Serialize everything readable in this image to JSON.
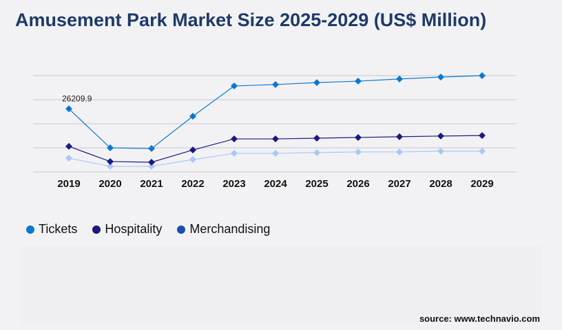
{
  "title": "Amusement Park Market Size 2025-2029 (US$ Million)",
  "source": "source: www.technavio.com",
  "chart_data": {
    "type": "line",
    "title": "Amusement Park Market Size 2025-2029 (US$ Million)",
    "x": [
      "2019",
      "2020",
      "2021",
      "2022",
      "2023",
      "2024",
      "2025",
      "2026",
      "2027",
      "2028",
      "2029"
    ],
    "ylim": [
      0,
      40000
    ],
    "grid": true,
    "legend_placement": "bottom-left",
    "series": [
      {
        "name": "Tickets",
        "color": "#0a78d2",
        "legend_color": "#0a78d2",
        "values": [
          26209.9,
          10000,
          9700,
          23100,
          35700,
          36300,
          37100,
          37700,
          38600,
          39400,
          40000
        ]
      },
      {
        "name": "Hospitality",
        "color": "#1a1a80",
        "legend_color": "#1a1a80",
        "values": [
          10600,
          4300,
          4000,
          9100,
          13700,
          13700,
          14000,
          14300,
          14600,
          14900,
          15100
        ]
      },
      {
        "name": "Merchandising",
        "color": "#a8c8f8",
        "legend_color": "#1a4fb0",
        "values": [
          5700,
          2300,
          2300,
          5100,
          7700,
          7700,
          8000,
          8300,
          8300,
          8600,
          8600
        ]
      }
    ],
    "annotations": [
      {
        "x": "2019",
        "series": "Tickets",
        "text": "26209.9"
      }
    ]
  }
}
